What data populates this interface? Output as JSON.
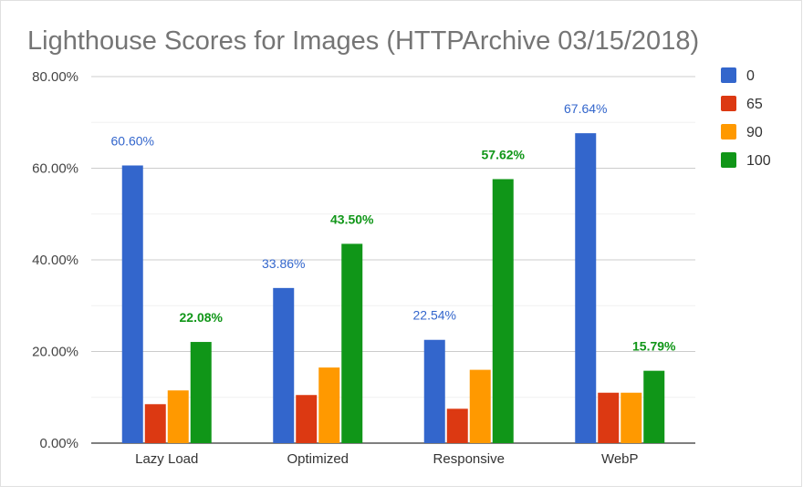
{
  "chart_data": {
    "type": "bar",
    "title": "Lighthouse Scores for Images (HTTPArchive 03/15/2018)",
    "xlabel": "",
    "ylabel": "",
    "categories": [
      "Lazy Load",
      "Optimized",
      "Responsive",
      "WebP"
    ],
    "series": [
      {
        "name": "0",
        "color": "#3366cc",
        "values": [
          60.6,
          33.86,
          22.54,
          67.64
        ],
        "labels": [
          "60.60%",
          "33.86%",
          "22.54%",
          "67.64%"
        ]
      },
      {
        "name": "65",
        "color": "#dc3912",
        "values": [
          8.5,
          10.5,
          7.5,
          11.0
        ],
        "labels": [
          null,
          null,
          null,
          null
        ]
      },
      {
        "name": "90",
        "color": "#ff9900",
        "values": [
          11.5,
          16.5,
          16.0,
          11.0
        ],
        "labels": [
          null,
          null,
          null,
          null
        ]
      },
      {
        "name": "100",
        "color": "#109618",
        "values": [
          22.08,
          43.5,
          57.62,
          15.79
        ],
        "labels": [
          "22.08%",
          "43.50%",
          "57.62%",
          "15.79%"
        ]
      }
    ],
    "ylim": [
      0,
      80
    ],
    "yticks": [
      0,
      20,
      40,
      60,
      80
    ],
    "ytick_labels": [
      "0.00%",
      "20.00%",
      "40.00%",
      "60.00%",
      "80.00%"
    ],
    "grid": true,
    "legend_position": "right"
  }
}
